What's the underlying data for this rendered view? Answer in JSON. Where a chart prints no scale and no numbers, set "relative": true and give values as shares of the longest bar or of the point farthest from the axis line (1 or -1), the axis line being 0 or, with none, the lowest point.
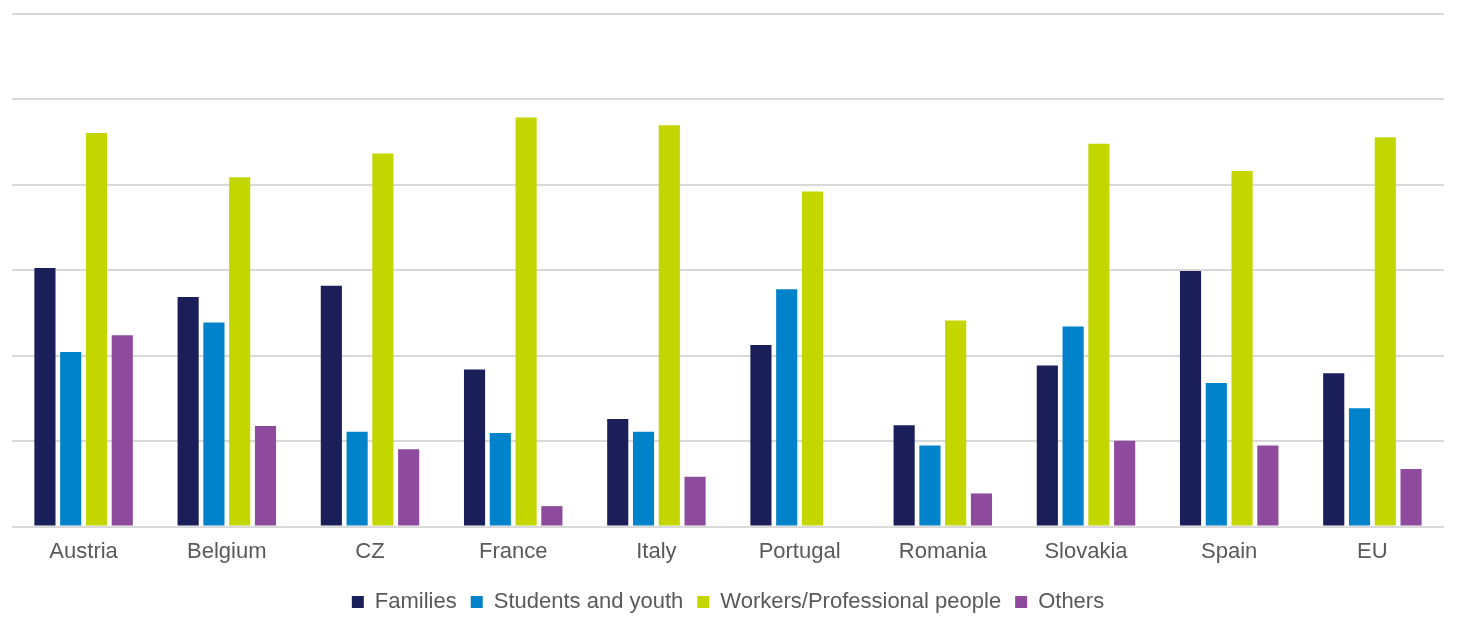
{
  "chart_data": {
    "type": "bar",
    "relative": true,
    "grid": "y",
    "legend": "bottom",
    "categories": [
      "Austria",
      "Belgium",
      "CZ",
      "France",
      "Italy",
      "Portugal",
      "Romania",
      "Slovakia",
      "Spain",
      "EU"
    ],
    "series": [
      {
        "name": "Families",
        "color": "#1a1f5a",
        "values": [
          0.632,
          0.561,
          0.589,
          0.384,
          0.263,
          0.444,
          0.248,
          0.394,
          0.625,
          0.375
        ]
      },
      {
        "name": "Students and youth",
        "color": "#0083ca",
        "values": [
          0.427,
          0.499,
          0.232,
          0.229,
          0.232,
          0.58,
          0.198,
          0.489,
          0.351,
          0.289
        ]
      },
      {
        "name": "Workers/Professional people",
        "color": "#c4d600",
        "values": [
          0.962,
          0.854,
          0.912,
          1,
          0.981,
          0.819,
          0.504,
          0.936,
          0.869,
          0.952
        ]
      },
      {
        "name": "Others",
        "color": "#8e4a9c",
        "values": [
          0.468,
          0.246,
          0.189,
          0.05,
          0.122,
          null,
          0.081,
          0.21,
          0.198,
          0.141
        ]
      }
    ]
  }
}
